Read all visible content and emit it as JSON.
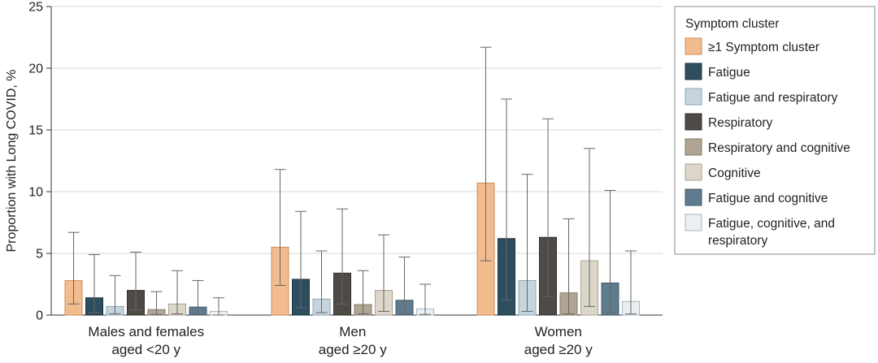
{
  "chart_data": {
    "type": "bar",
    "ylabel": "Proportion with Long COVID, %",
    "ylim": [
      0,
      25
    ],
    "yticks": [
      0,
      5,
      10,
      15,
      20,
      25
    ],
    "grid": "horizontal",
    "legend_title": "Symptom cluster",
    "legend_position": "right",
    "categories": [
      [
        "Males and females",
        "aged <20 y"
      ],
      [
        "Men",
        "aged ≥20 y"
      ],
      [
        "Women",
        "aged ≥20 y"
      ]
    ],
    "series": [
      {
        "name": "≥1 Symptom cluster",
        "label_lines": [
          "≥1 Symptom cluster"
        ],
        "color": "#F2BC8E",
        "stroke": "#C98E5C",
        "values": [
          2.8,
          5.5,
          10.7
        ],
        "lower": [
          0.9,
          2.4,
          4.4
        ],
        "upper": [
          6.7,
          11.8,
          21.7
        ]
      },
      {
        "name": "Fatigue",
        "label_lines": [
          "Fatigue"
        ],
        "color": "#2E4D5E",
        "stroke": "#1E3440",
        "values": [
          1.4,
          2.9,
          6.2
        ],
        "lower": [
          0.2,
          0.6,
          1.2
        ],
        "upper": [
          4.9,
          8.4,
          17.5
        ]
      },
      {
        "name": "Fatigue and respiratory",
        "label_lines": [
          "Fatigue and respiratory"
        ],
        "color": "#C5D4DD",
        "stroke": "#8FA6B4",
        "values": [
          0.7,
          1.3,
          2.8
        ],
        "lower": [
          0.1,
          0.2,
          0.3
        ],
        "upper": [
          3.2,
          5.2,
          11.4
        ]
      },
      {
        "name": "Respiratory",
        "label_lines": [
          "Respiratory"
        ],
        "color": "#4E4A45",
        "stroke": "#34312d",
        "values": [
          2.0,
          3.4,
          6.3
        ],
        "lower": [
          0.4,
          0.9,
          1.5
        ],
        "upper": [
          5.1,
          8.6,
          15.9
        ]
      },
      {
        "name": "Respiratory and cognitive",
        "label_lines": [
          "Respiratory and cognitive"
        ],
        "color": "#B0A593",
        "stroke": "#857b6a",
        "values": [
          0.45,
          0.85,
          1.8
        ],
        "lower": [
          0.05,
          0.1,
          0.1
        ],
        "upper": [
          1.9,
          3.6,
          7.8
        ]
      },
      {
        "name": "Cognitive",
        "label_lines": [
          "Cognitive"
        ],
        "color": "#DCD7C9",
        "stroke": "#a8a291",
        "values": [
          0.9,
          2.0,
          4.4
        ],
        "lower": [
          0.1,
          0.3,
          0.7
        ],
        "upper": [
          3.6,
          6.5,
          13.5
        ]
      },
      {
        "name": "Fatigue and cognitive",
        "label_lines": [
          "Fatigue and cognitive"
        ],
        "color": "#5F7C8E",
        "stroke": "#435a68",
        "values": [
          0.65,
          1.2,
          2.6
        ],
        "lower": [
          0.05,
          0.1,
          0.2
        ],
        "upper": [
          2.8,
          4.7,
          10.1
        ]
      },
      {
        "name": "Fatigue, cognitive, and respiratory",
        "label_lines": [
          "Fatigue, cognitive, and",
          "respiratory"
        ],
        "color": "#EBEFF2",
        "stroke": "#a9b4bc",
        "values": [
          0.3,
          0.5,
          1.1
        ],
        "lower": [
          0.0,
          0.05,
          0.1
        ],
        "upper": [
          1.4,
          2.5,
          5.2
        ]
      }
    ]
  }
}
